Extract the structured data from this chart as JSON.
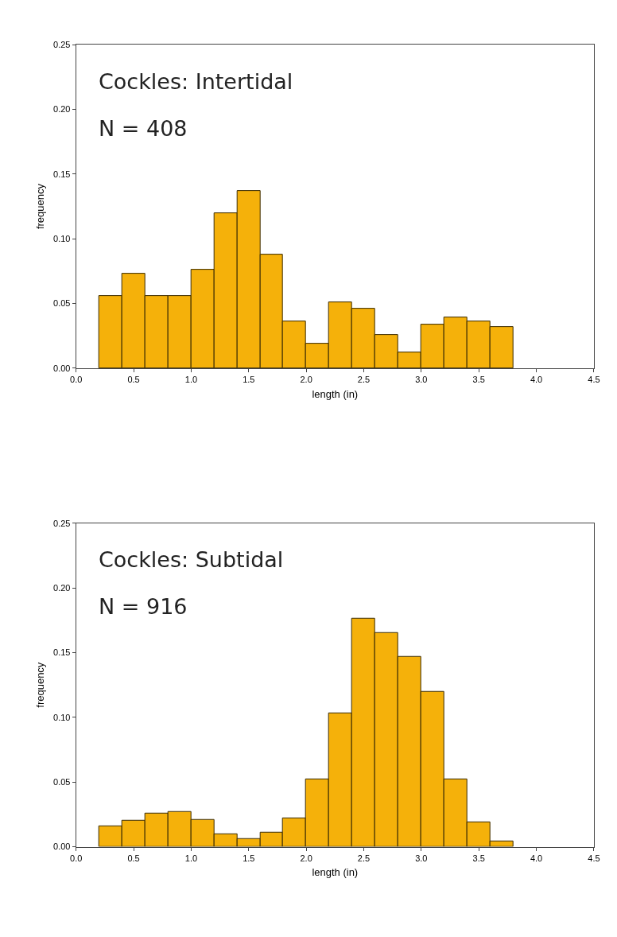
{
  "chart_data": [
    {
      "type": "histogram",
      "annotations": [
        "Cockles: Intertidal",
        "N = 408"
      ],
      "xlabel": "length (in)",
      "ylabel": "frequency",
      "color": "#f5b10a",
      "bins": [
        0.2,
        0.4,
        0.6,
        0.8,
        1.0,
        1.2,
        1.4,
        1.6,
        1.8,
        2.0,
        2.2,
        2.4,
        2.6,
        2.8,
        3.0,
        3.2,
        3.4,
        3.6,
        3.8
      ],
      "values": [
        0.056,
        0.073,
        0.056,
        0.056,
        0.076,
        0.12,
        0.137,
        0.088,
        0.036,
        0.019,
        0.051,
        0.046,
        0.026,
        0.012,
        0.034,
        0.039,
        0.036,
        0.032
      ],
      "xlim": [
        0,
        4.5
      ],
      "xticks": [
        {
          "value": 0,
          "label": "0.0"
        },
        0.5,
        {
          "value": 1,
          "label": "1.0"
        },
        1.5,
        {
          "value": 2,
          "label": "2.0"
        },
        2.5,
        {
          "value": 3,
          "label": "3.0"
        },
        3.5,
        {
          "value": 4,
          "label": "4.0"
        },
        4.5
      ],
      "ylim": [
        0,
        0.25
      ],
      "yticks": [
        {
          "value": 0,
          "label": "0.00"
        },
        0.05,
        {
          "value": 0.1,
          "label": "0.10"
        },
        0.15,
        {
          "value": 0.2,
          "label": "0.20"
        },
        0.25
      ],
      "grid": false
    },
    {
      "type": "histogram",
      "annotations": [
        "Cockles: Subtidal",
        "N = 916"
      ],
      "xlabel": "length (in)",
      "ylabel": "frequency",
      "color": "#f5b10a",
      "bins": [
        0.2,
        0.4,
        0.6,
        0.8,
        1.0,
        1.2,
        1.4,
        1.6,
        1.8,
        2.0,
        2.2,
        2.4,
        2.6,
        2.8,
        3.0,
        3.2,
        3.4,
        3.6,
        3.8
      ],
      "values": [
        0.016,
        0.02,
        0.026,
        0.027,
        0.021,
        0.01,
        0.006,
        0.011,
        0.022,
        0.052,
        0.103,
        0.176,
        0.165,
        0.147,
        0.12,
        0.052,
        0.019,
        0.004
      ],
      "xlim": [
        0,
        4.5
      ],
      "xticks": [
        {
          "value": 0,
          "label": "0.0"
        },
        0.5,
        {
          "value": 1,
          "label": "1.0"
        },
        1.5,
        {
          "value": 2,
          "label": "2.0"
        },
        2.5,
        {
          "value": 3,
          "label": "3.0"
        },
        3.5,
        {
          "value": 4,
          "label": "4.0"
        },
        4.5
      ],
      "ylim": [
        0,
        0.25
      ],
      "yticks": [
        {
          "value": 0,
          "label": "0.00"
        },
        0.05,
        {
          "value": 0.1,
          "label": "0.10"
        },
        0.15,
        {
          "value": 0.2,
          "label": "0.20"
        },
        0.25
      ],
      "grid": false
    }
  ]
}
